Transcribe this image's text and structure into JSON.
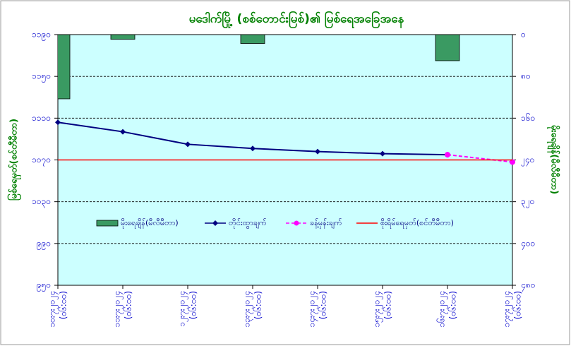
{
  "chart_data": {
    "type": "combo",
    "title": "မဒေါက်မြို့ (စစ်တောင်းမြစ်)၏ မြစ်ရေအခြေအနေ",
    "y_label": "မြစ်ရေမှတ်(စင်တီမီတာ)",
    "y2_label": "မိုးရေချိန်(မီလီမီတာ)",
    "categories": [
      "၁၀း၇း၂၀၂၄",
      "၁၁း၇း၂၀၂၄",
      "၁၂း၇း၂၀၂၄",
      "၁၃း၇း၂၀၂၄",
      "၁၄း၇း၂၀၂၄",
      "၁၅း၇း၂၀၂၄",
      "၁၆း၇း၂၀၂၄",
      "၁၇း၇း၂၀၂၄"
    ],
    "times": [
      "(၀၆:၀၀)",
      "(၀၆:၀၀)",
      "(၀၆:၀၀)",
      "(၀၆:၀၀)",
      "(၀၆:၀၀)",
      "(၀၆:၀၀)",
      "(၀၆:၀၀)",
      "(၀၆:၀၀)"
    ],
    "ylim": [
      950,
      1190
    ],
    "yticks": [
      {
        "value": 950,
        "label": "၉၅၀"
      },
      {
        "value": 990,
        "label": "၉၉၀"
      },
      {
        "value": 1030,
        "label": "၁၀၃၀"
      },
      {
        "value": 1070,
        "label": "၁၀၇၀"
      },
      {
        "value": 1110,
        "label": "၁၁၁၀"
      },
      {
        "value": 1150,
        "label": "၁၁၅၀"
      },
      {
        "value": 1190,
        "label": "၁၁၉၀"
      }
    ],
    "y2lim": [
      0,
      480
    ],
    "y2_reversed": true,
    "y2ticks": [
      {
        "value": 0,
        "label": "၀"
      },
      {
        "value": 80,
        "label": "၈၀"
      },
      {
        "value": 160,
        "label": "၁၆၀"
      },
      {
        "value": 240,
        "label": "၂၄၀"
      },
      {
        "value": 320,
        "label": "၃၂၀"
      },
      {
        "value": 400,
        "label": "၄၀၀"
      },
      {
        "value": 480,
        "label": "၄၈၀"
      }
    ],
    "grid": true,
    "series": [
      {
        "name": "မိုးရေချိန်(မီလီမီတာ)",
        "type": "bar",
        "axis": "y2",
        "color": "#3a9a62",
        "values": [
          123,
          9,
          0,
          17,
          0,
          0,
          50,
          0
        ]
      },
      {
        "name": "တိုင်းထွာချက်",
        "type": "line",
        "color": "#000080",
        "marker": "diamond",
        "values": [
          1106,
          1097,
          1085,
          1081,
          1078,
          1076,
          1075,
          null
        ]
      },
      {
        "name": "ခန့်မှန်းချက်",
        "type": "line",
        "color": "#ff00ff",
        "dashed": true,
        "marker": "circle",
        "values": [
          null,
          null,
          null,
          null,
          null,
          null,
          1075,
          1068
        ]
      },
      {
        "name": "စိုးရိမ်ရေမှတ်(စင်တီမီတာ)",
        "type": "line",
        "color": "#ff0000",
        "values": [
          1070,
          1070,
          1070,
          1070,
          1070,
          1070,
          1070,
          1070
        ]
      }
    ]
  }
}
